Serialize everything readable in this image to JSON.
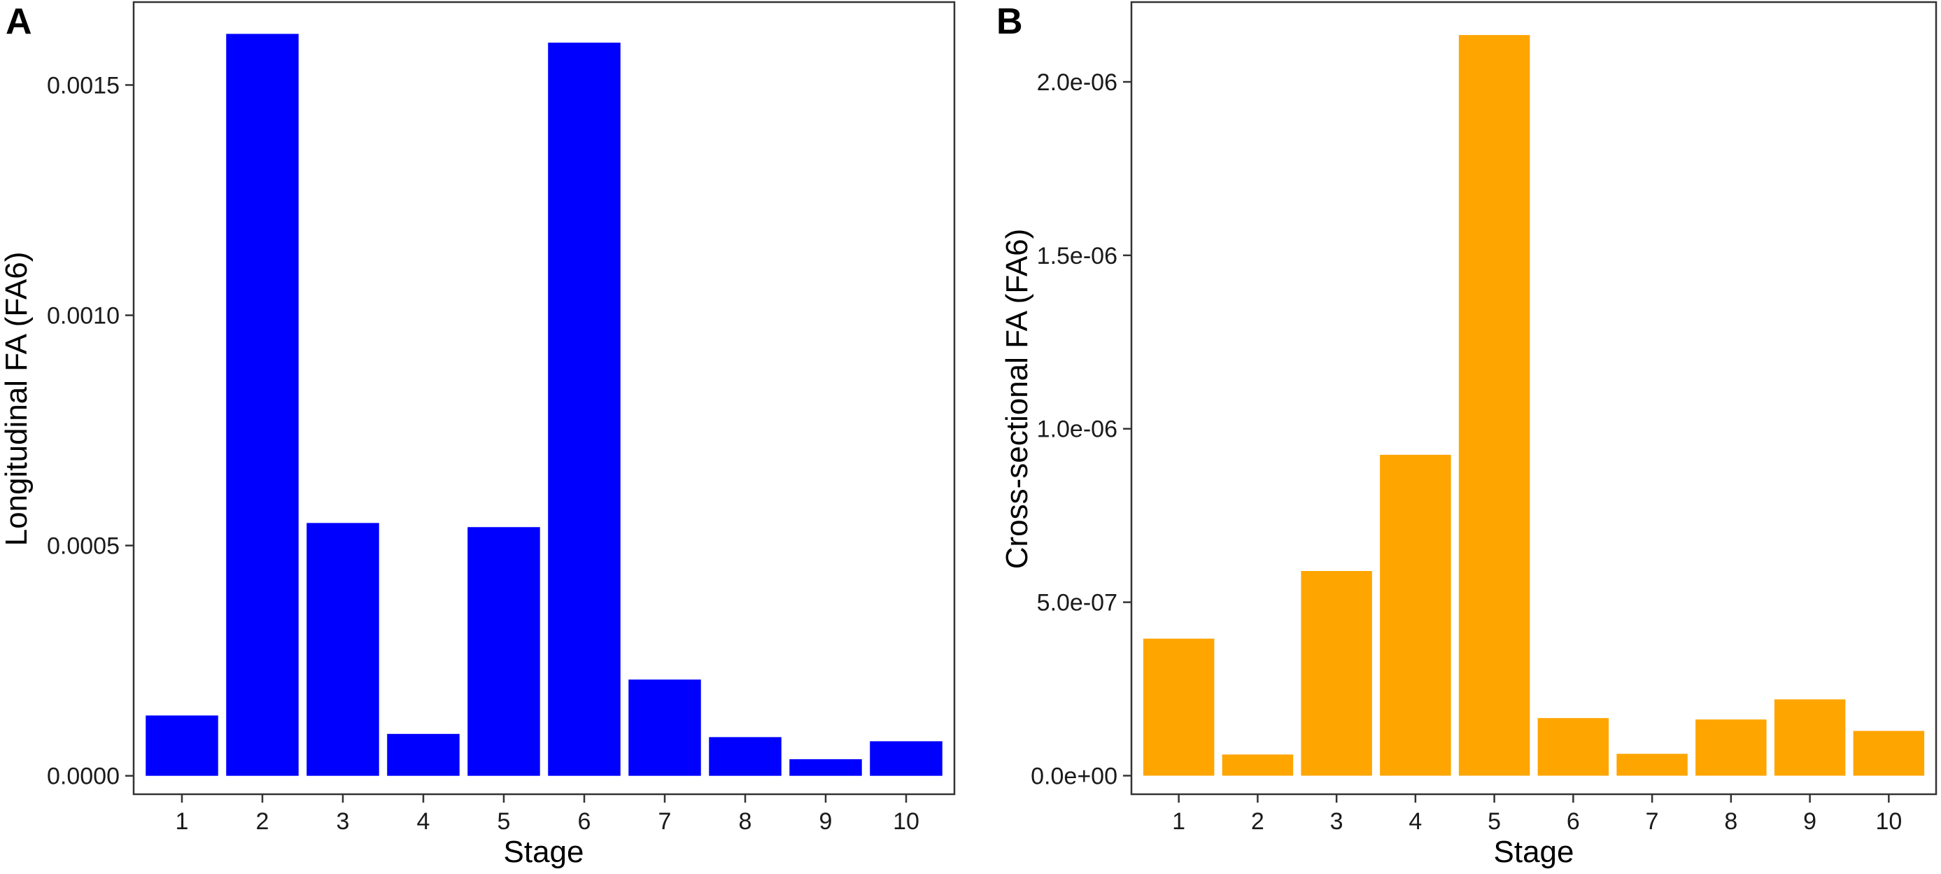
{
  "chart_data": [
    {
      "panel_label": "A",
      "type": "bar",
      "categories": [
        "1",
        "2",
        "3",
        "4",
        "5",
        "6",
        "7",
        "8",
        "9",
        "10"
      ],
      "values": [
        0.000131,
        0.001611,
        0.000549,
        9.1e-05,
        0.00054,
        0.001592,
        0.000209,
        8.4e-05,
        3.6e-05,
        7.5e-05
      ],
      "color": "#0000ff",
      "xlabel": "Stage",
      "ylabel": "Longitudinal FA (FA6)",
      "ylim": [
        -4e-05,
        0.00168
      ],
      "yticks": [
        0,
        0.0005,
        0.001,
        0.0015
      ],
      "ytick_labels": [
        "0.0000",
        "0.0005",
        "0.0010",
        "0.0015"
      ],
      "grid": false,
      "title": ""
    },
    {
      "panel_label": "B",
      "type": "bar",
      "categories": [
        "1",
        "2",
        "3",
        "4",
        "5",
        "6",
        "7",
        "8",
        "9",
        "10"
      ],
      "values": [
        3.95e-07,
        6.1e-08,
        5.9e-07,
        9.25e-07,
        2.135e-06,
        1.66e-07,
        6.3e-08,
        1.62e-07,
        2.2e-07,
        1.29e-07
      ],
      "color": "#ffa500",
      "xlabel": "Stage",
      "ylabel": "Cross-sectional FA (FA6)",
      "ylim": [
        -5.35e-08,
        2.23e-06
      ],
      "yticks": [
        0,
        5e-07,
        1e-06,
        1.5e-06,
        2e-06
      ],
      "ytick_labels": [
        "0.0e+00",
        "5.0e-07",
        "1.0e-06",
        "1.5e-06",
        "2.0e-06"
      ],
      "grid": false,
      "title": ""
    }
  ]
}
